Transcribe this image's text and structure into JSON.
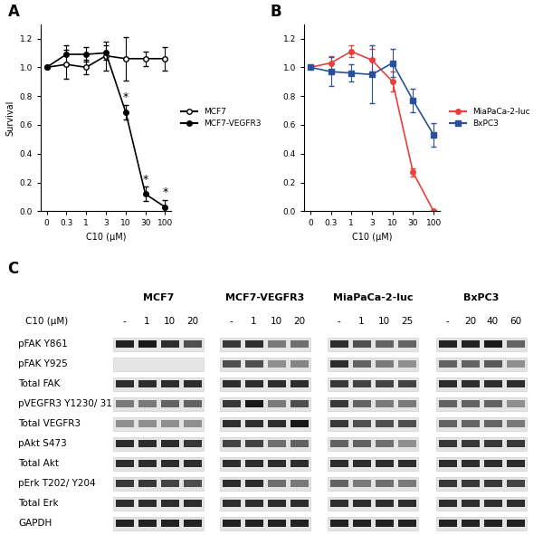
{
  "chart_data": [
    {
      "type": "line",
      "title": "A",
      "xlabel": "C10 (μM)",
      "ylabel": "Survival",
      "categories": [
        "0",
        "0.3",
        "1",
        "3",
        "10",
        "30",
        "100"
      ],
      "series": [
        {
          "name": "MCF7",
          "color": "#000000",
          "marker": "hollow_circle",
          "line_style": "solid",
          "values": [
            1.0,
            1.02,
            1.0,
            1.08,
            1.06,
            1.06,
            1.06
          ],
          "error": [
            0.0,
            0.1,
            0.05,
            0.1,
            0.15,
            0.05,
            0.08
          ]
        },
        {
          "name": "MCF7-VEGFR3",
          "color": "#000000",
          "marker": "circle",
          "line_style": "solid",
          "values": [
            1.0,
            1.09,
            1.09,
            1.1,
            0.69,
            0.12,
            0.03
          ],
          "error": [
            0.0,
            0.06,
            0.05,
            0.05,
            0.05,
            0.05,
            0.05
          ]
        }
      ],
      "annotations": [
        {
          "text": "*",
          "x": "10",
          "series": "MCF7-VEGFR3"
        },
        {
          "text": "*",
          "x": "30",
          "series": "MCF7-VEGFR3"
        },
        {
          "text": "*",
          "x": "100",
          "series": "MCF7-VEGFR3"
        }
      ],
      "ylim": [
        0,
        1.3
      ],
      "yticks": [
        {
          "value": 0,
          "label": "0.0"
        },
        {
          "value": 0.2,
          "label": "0.2"
        },
        {
          "value": 0.4,
          "label": "0.4"
        },
        {
          "value": 0.6,
          "label": "0.6"
        },
        {
          "value": 0.8,
          "label": "0.8"
        },
        {
          "value": 1.0,
          "label": "1.0"
        },
        {
          "value": 1.2,
          "label": "1.2"
        }
      ],
      "legend": "center left"
    },
    {
      "type": "line",
      "title": "B",
      "xlabel": "C10 (μM)",
      "categories": [
        "0",
        "0.3",
        "1",
        "3",
        "10",
        "30",
        "100"
      ],
      "series": [
        {
          "name": "MiaPaCa-2-luc",
          "color": "#e8413c",
          "marker": "circle",
          "line_style": "solid",
          "values": [
            1.0,
            1.03,
            1.11,
            1.05,
            0.9,
            0.27,
            0.0
          ],
          "error": [
            0.0,
            0.05,
            0.04,
            0.08,
            0.07,
            0.03,
            0.0
          ]
        },
        {
          "name": "BxPC3",
          "color": "#2a4f9c",
          "marker": "square",
          "line_style": "solid",
          "values": [
            1.0,
            0.97,
            0.96,
            0.95,
            1.03,
            0.77,
            0.53
          ],
          "error": [
            0.0,
            0.1,
            0.06,
            0.2,
            0.1,
            0.08,
            0.08
          ]
        }
      ],
      "ylim": [
        0,
        1.3
      ],
      "yticks": [
        {
          "value": 0,
          "label": "0.0"
        },
        {
          "value": 0.2,
          "label": "0.2"
        },
        {
          "value": 0.4,
          "label": "0.4"
        },
        {
          "value": 0.6,
          "label": "0.6"
        },
        {
          "value": 0.8,
          "label": "0.8"
        },
        {
          "value": 1.0,
          "label": "1.0"
        },
        {
          "value": 1.2,
          "label": "1.2"
        }
      ],
      "legend": "center left"
    }
  ],
  "blot": {
    "title": "C",
    "dose_label": "C10 (μM)",
    "cells": [
      {
        "name": "MCF7",
        "doses": [
          "-",
          "1",
          "10",
          "20"
        ]
      },
      {
        "name": "MCF7-VEGFR3",
        "doses": [
          "-",
          "1",
          "10",
          "20"
        ]
      },
      {
        "name": "MiaPaCa-2-luc",
        "doses": [
          "-",
          "1",
          "10",
          "25"
        ]
      },
      {
        "name": "BxPC3",
        "doses": [
          "-",
          "20",
          "40",
          "60"
        ]
      }
    ],
    "rows": [
      {
        "label": "pFAK Y861",
        "intensity": [
          [
            0.9,
            0.95,
            0.85,
            0.7
          ],
          [
            0.8,
            0.85,
            0.5,
            0.55
          ],
          [
            0.85,
            0.7,
            0.6,
            0.6
          ],
          [
            0.9,
            0.9,
            0.95,
            0.6
          ]
        ]
      },
      {
        "label": "pFAK Y925",
        "intensity": [
          [
            0,
            0,
            0,
            0
          ],
          [
            0.7,
            0.7,
            0.4,
            0.45
          ],
          [
            0.85,
            0.6,
            0.5,
            0.4
          ],
          [
            0.6,
            0.6,
            0.65,
            0.4
          ]
        ]
      },
      {
        "label": "Total FAK",
        "intensity": [
          [
            0.85,
            0.85,
            0.85,
            0.85
          ],
          [
            0.85,
            0.85,
            0.85,
            0.85
          ],
          [
            0.8,
            0.75,
            0.75,
            0.75
          ],
          [
            0.85,
            0.85,
            0.85,
            0.85
          ]
        ]
      },
      {
        "label": "pVEGFR3 Y1230/ 31",
        "intensity": [
          [
            0.5,
            0.5,
            0.6,
            0.6
          ],
          [
            0.8,
            0.95,
            0.5,
            0.7
          ],
          [
            0.8,
            0.6,
            0.5,
            0.5
          ],
          [
            0.6,
            0.6,
            0.6,
            0.4
          ]
        ]
      },
      {
        "label": "Total VEGFR3",
        "intensity": [
          [
            0.4,
            0.4,
            0.4,
            0.4
          ],
          [
            0.85,
            0.85,
            0.85,
            0.95
          ],
          [
            0.8,
            0.7,
            0.7,
            0.7
          ],
          [
            0.6,
            0.6,
            0.6,
            0.5
          ]
        ]
      },
      {
        "label": "pAkt S473",
        "intensity": [
          [
            0.85,
            0.85,
            0.85,
            0.8
          ],
          [
            0.75,
            0.75,
            0.55,
            0.6
          ],
          [
            0.6,
            0.6,
            0.55,
            0.4
          ],
          [
            0.8,
            0.8,
            0.8,
            0.8
          ]
        ]
      },
      {
        "label": "Total Akt",
        "intensity": [
          [
            0.85,
            0.85,
            0.85,
            0.85
          ],
          [
            0.85,
            0.85,
            0.85,
            0.85
          ],
          [
            0.85,
            0.85,
            0.85,
            0.85
          ],
          [
            0.85,
            0.85,
            0.85,
            0.85
          ]
        ]
      },
      {
        "label": "pErk T202/ Y204",
        "intensity": [
          [
            0.8,
            0.8,
            0.75,
            0.7
          ],
          [
            0.85,
            0.85,
            0.55,
            0.5
          ],
          [
            0.6,
            0.5,
            0.55,
            0.5
          ],
          [
            0.8,
            0.8,
            0.8,
            0.75
          ]
        ]
      },
      {
        "label": "Total Erk",
        "intensity": [
          [
            0.85,
            0.85,
            0.85,
            0.85
          ],
          [
            0.85,
            0.85,
            0.85,
            0.85
          ],
          [
            0.85,
            0.85,
            0.85,
            0.85
          ],
          [
            0.85,
            0.85,
            0.85,
            0.85
          ]
        ]
      },
      {
        "label": "GAPDH",
        "intensity": [
          [
            0.9,
            0.9,
            0.9,
            0.9
          ],
          [
            0.9,
            0.9,
            0.9,
            0.9
          ],
          [
            0.9,
            0.9,
            0.9,
            0.9
          ],
          [
            0.9,
            0.9,
            0.9,
            0.9
          ]
        ]
      }
    ]
  }
}
